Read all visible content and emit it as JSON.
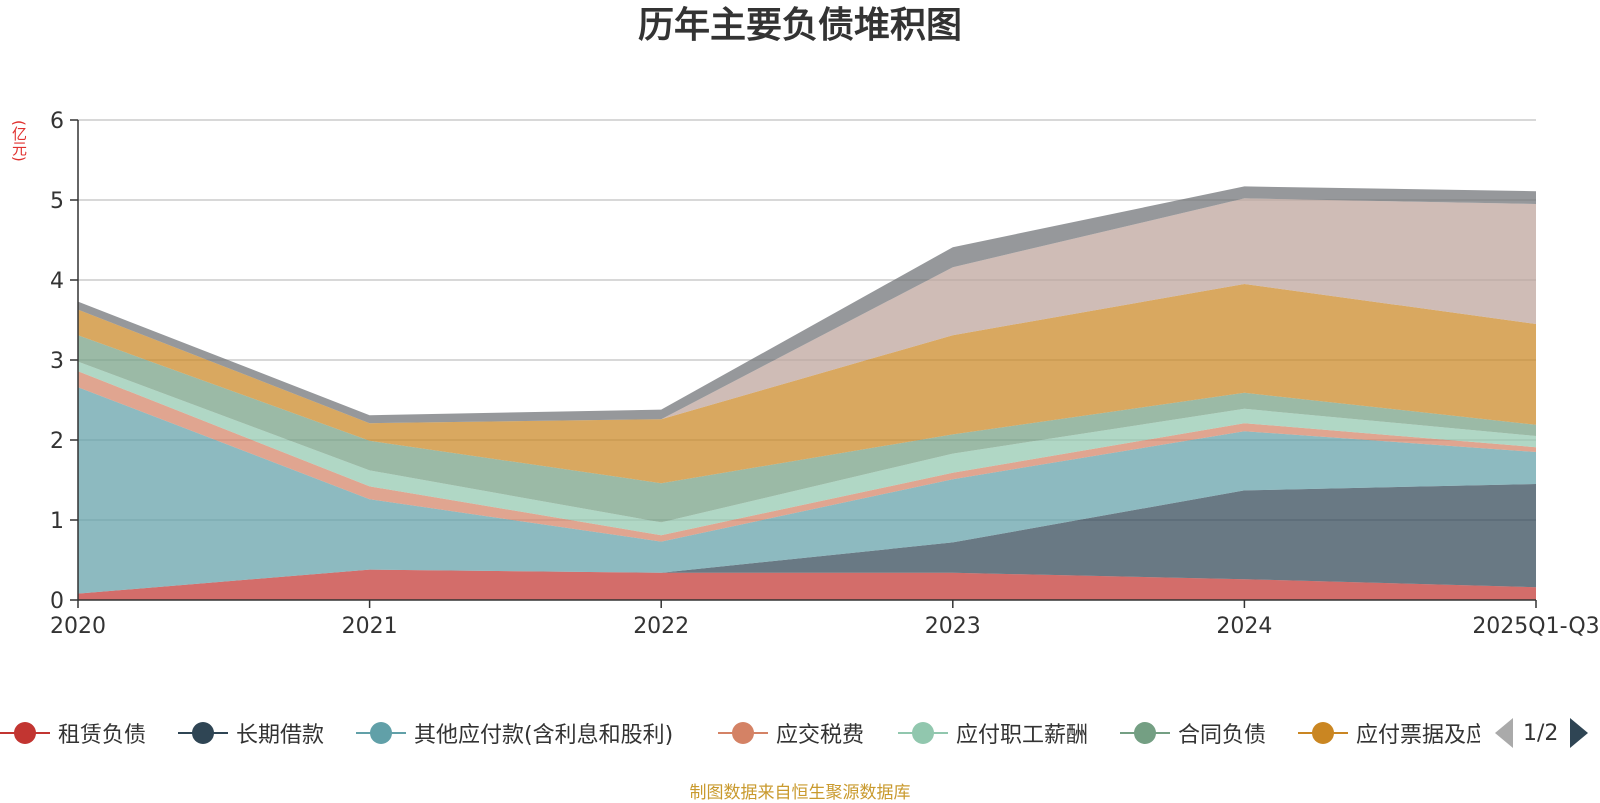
{
  "chart_data": {
    "type": "area",
    "stacked": true,
    "title": "历年主要负债堆积图",
    "unit_label": "(亿元)",
    "categories": [
      "2020",
      "2021",
      "2022",
      "2023",
      "2024",
      "2025Q1-Q3"
    ],
    "ylim": [
      0,
      6
    ],
    "yticks": [
      0,
      1,
      2,
      3,
      4,
      5,
      6
    ],
    "grid": true,
    "series": [
      {
        "name": "租赁负债",
        "color": "#c23531",
        "values": [
          0.08,
          0.38,
          0.34,
          0.34,
          0.26,
          0.16
        ]
      },
      {
        "name": "长期借款",
        "color": "#2f4554",
        "values": [
          0.0,
          0.0,
          0.0,
          0.38,
          1.11,
          1.29
        ]
      },
      {
        "name": "其他应付款(含利息和股利)",
        "color": "#61a0a8",
        "values": [
          2.58,
          0.88,
          0.39,
          0.79,
          0.74,
          0.4
        ]
      },
      {
        "name": "应交税费",
        "color": "#d48265",
        "values": [
          0.2,
          0.16,
          0.08,
          0.08,
          0.1,
          0.06
        ]
      },
      {
        "name": "应付职工薪酬",
        "color": "#91c7ae",
        "values": [
          0.12,
          0.2,
          0.16,
          0.24,
          0.18,
          0.14
        ]
      },
      {
        "name": "合同负债",
        "color": "#749f83",
        "values": [
          0.33,
          0.37,
          0.49,
          0.24,
          0.2,
          0.14
        ]
      },
      {
        "name": "应付票据及应付账款",
        "color": "#ca8622",
        "values": [
          0.32,
          0.22,
          0.8,
          1.24,
          1.36,
          1.26
        ]
      },
      {
        "name": "",
        "color": "#bda29a",
        "values": [
          0.0,
          0.0,
          0.0,
          0.85,
          1.07,
          1.5
        ]
      },
      {
        "name": "",
        "color": "#6e7074",
        "values": [
          0.1,
          0.1,
          0.12,
          0.25,
          0.15,
          0.16
        ]
      }
    ]
  },
  "legend": {
    "items": [
      {
        "label": "租赁负债",
        "color": "#c23531"
      },
      {
        "label": "长期借款",
        "color": "#2f4554"
      },
      {
        "label": "其他应付款(含利息和股利)",
        "color": "#61a0a8"
      },
      {
        "label": "应交税费",
        "color": "#d48265"
      },
      {
        "label": "应付职工薪酬",
        "color": "#91c7ae"
      },
      {
        "label": "合同负债",
        "color": "#749f83"
      },
      {
        "label": "应付票据及应付账款",
        "color": "#ca8622"
      }
    ],
    "page_indicator": "1/2"
  },
  "source_text": "制图数据来自恒生聚源数据库"
}
